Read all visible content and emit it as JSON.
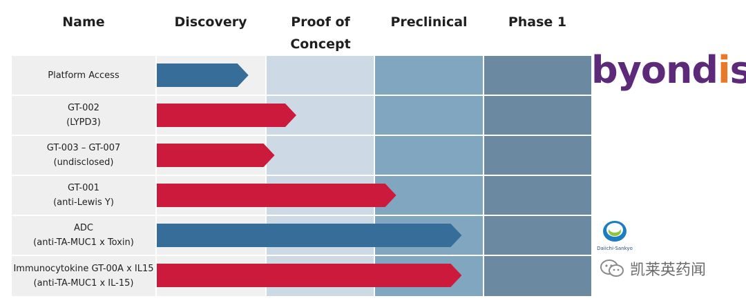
{
  "headers": {
    "name": "Name",
    "discovery": "Discovery",
    "poc": "Proof of\nConcept",
    "preclinical": "Preclinical",
    "phase1": "Phase 1"
  },
  "rows": [
    {
      "label": "Platform Access",
      "stage": 0.84,
      "color": "#366d99"
    },
    {
      "label": "GT-002\n(LYPD3)",
      "stage": 1.28,
      "color": "#cc1a3c"
    },
    {
      "label": "GT-003 – GT-007\n(undisclosed)",
      "stage": 1.08,
      "color": "#cc1a3c"
    },
    {
      "label": "GT-001\n(anti-Lewis Y)",
      "stage": 2.2,
      "color": "#cc1a3c"
    },
    {
      "label": "ADC\n(anti-TA-MUC1 x Toxin)",
      "stage": 2.8,
      "color": "#366d99"
    },
    {
      "label": "Immunocytokine GT-00A x IL15\n(anti-TA-MUC1 x IL-15)",
      "stage": 2.8,
      "color": "#cc1a3c"
    }
  ],
  "column_colors": [
    "#f0f0f0",
    "#cddae5",
    "#80a6c0",
    "#6b8aa1"
  ],
  "logos": {
    "byondis_main": "byond",
    "byondis_accent": "i",
    "byondis_tail": "s",
    "daiichi": "Daiichi-Sankyo",
    "watermark": "凯莱英药闻"
  }
}
